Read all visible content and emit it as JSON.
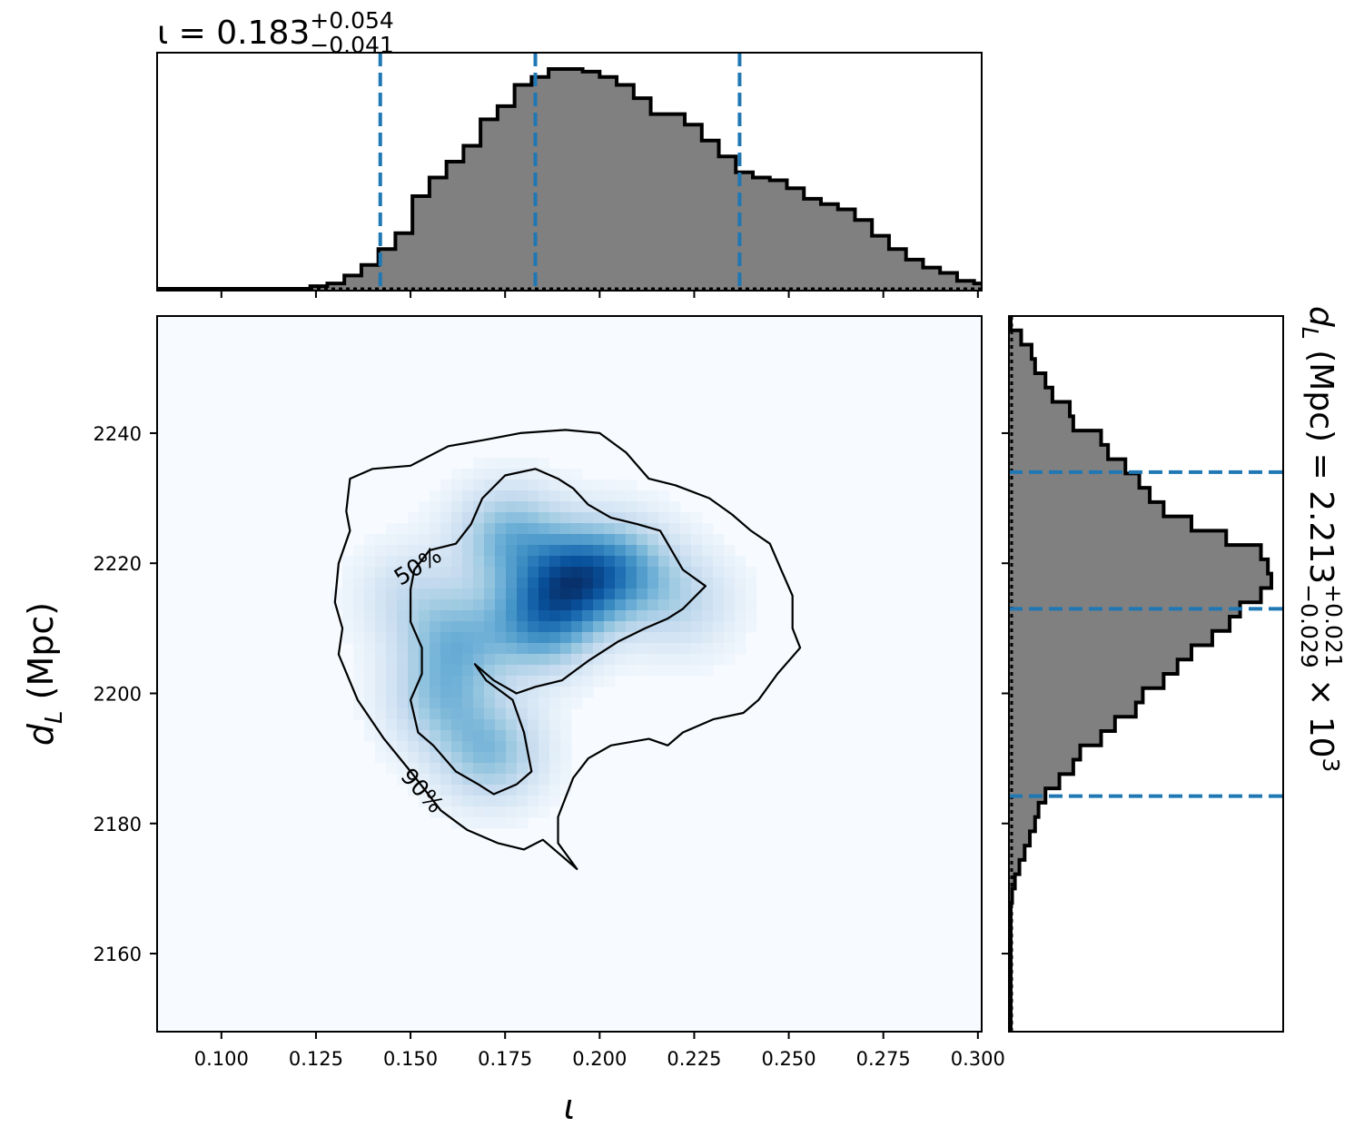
{
  "chart_data": [
    {
      "panel": "iota-marginal",
      "type": "histogram",
      "title_main": "ι = 0.183",
      "title_sup": "+0.054",
      "title_sub": "−0.041",
      "xlim": [
        0.083,
        0.301
      ],
      "bin_edges_start": 0.083,
      "bin_width": 0.0045,
      "counts": [
        0,
        0,
        0,
        0,
        0,
        0,
        0,
        0,
        0,
        0.5,
        1,
        2.5,
        4.5,
        7.5,
        10.5,
        17.5,
        21,
        24,
        27,
        32,
        34.5,
        38.5,
        40,
        41.5,
        41.5,
        41,
        40,
        38.5,
        36,
        33,
        33,
        31,
        28,
        25,
        22,
        21,
        20.5,
        19,
        17,
        16,
        15,
        13,
        10,
        7.5,
        5.5,
        4,
        3,
        1.5,
        1,
        0.5
      ],
      "quantile_lines": [
        0.142,
        0.183,
        0.237
      ],
      "fill_color": "#808080",
      "line_color": "#1f77b4"
    },
    {
      "panel": "joint-density",
      "type": "heatmap",
      "xlabel": "ι",
      "ylabel": "d_L (Mpc)",
      "xlim": [
        0.083,
        0.301
      ],
      "ylim": [
        2148,
        2258
      ],
      "xticks": [
        "0.100",
        "0.125",
        "0.150",
        "0.175",
        "0.200",
        "0.225",
        "0.250",
        "0.275",
        "0.300"
      ],
      "xtick_values": [
        0.1,
        0.125,
        0.15,
        0.175,
        0.2,
        0.225,
        0.25,
        0.275,
        0.3
      ],
      "yticks": [
        "2160",
        "2180",
        "2200",
        "2220",
        "2240"
      ],
      "ytick_values": [
        2160,
        2180,
        2200,
        2220,
        2240
      ],
      "colormap": "Blues",
      "density_peaks": [
        {
          "x": 0.193,
          "y": 2217.5,
          "amp": 1.0
        },
        {
          "x": 0.184,
          "y": 2211,
          "amp": 0.78
        },
        {
          "x": 0.176,
          "y": 2224,
          "amp": 0.6
        },
        {
          "x": 0.206,
          "y": 2219,
          "amp": 0.62
        },
        {
          "x": 0.162,
          "y": 2208,
          "amp": 0.5
        },
        {
          "x": 0.171,
          "y": 2191,
          "amp": 0.55
        },
        {
          "x": 0.158,
          "y": 2199,
          "amp": 0.45
        },
        {
          "x": 0.222,
          "y": 2214,
          "amp": 0.3
        },
        {
          "x": 0.15,
          "y": 2215,
          "amp": 0.25
        }
      ],
      "contours": [
        {
          "label": "50%",
          "label_at": [
            0.152,
            2219.5
          ],
          "label_angle": -32,
          "points": [
            [
              0.15,
              2216
            ],
            [
              0.151,
              2219
            ],
            [
              0.155,
              2222
            ],
            [
              0.162,
              2223
            ],
            [
              0.166,
              2226
            ],
            [
              0.169,
              2230
            ],
            [
              0.175,
              2233.5
            ],
            [
              0.183,
              2234.5
            ],
            [
              0.189,
              2233
            ],
            [
              0.193,
              2231.5
            ],
            [
              0.197,
              2229
            ],
            [
              0.203,
              2227
            ],
            [
              0.21,
              2226
            ],
            [
              0.216,
              2225
            ],
            [
              0.219,
              2222
            ],
            [
              0.222,
              2219
            ],
            [
              0.228,
              2216.5
            ],
            [
              0.222,
              2213
            ],
            [
              0.218,
              2211.5
            ],
            [
              0.212,
              2210
            ],
            [
              0.205,
              2208
            ],
            [
              0.197,
              2205
            ],
            [
              0.19,
              2202
            ],
            [
              0.183,
              2201
            ],
            [
              0.178,
              2200
            ],
            [
              0.172,
              2202
            ],
            [
              0.167,
              2204.5
            ],
            [
              0.17,
              2202
            ],
            [
              0.177,
              2199
            ],
            [
              0.18,
              2194
            ],
            [
              0.182,
              2188
            ],
            [
              0.178,
              2186
            ],
            [
              0.172,
              2184.5
            ],
            [
              0.168,
              2186
            ],
            [
              0.162,
              2188
            ],
            [
              0.156,
              2192
            ],
            [
              0.152,
              2194
            ],
            [
              0.15,
              2199
            ],
            [
              0.153,
              2203
            ],
            [
              0.153,
              2207
            ],
            [
              0.15,
              2211
            ],
            [
              0.15,
              2216
            ]
          ]
        },
        {
          "label": "90%",
          "label_at": [
            0.153,
            2185
          ],
          "label_angle": 48,
          "points": [
            [
              0.158,
              2182
            ],
            [
              0.165,
              2179
            ],
            [
              0.173,
              2177
            ],
            [
              0.18,
              2176
            ],
            [
              0.185,
              2177.5
            ],
            [
              0.19,
              2175
            ],
            [
              0.194,
              2173
            ],
            [
              0.189,
              2177
            ],
            [
              0.189,
              2181
            ],
            [
              0.193,
              2187
            ],
            [
              0.197,
              2190
            ],
            [
              0.203,
              2192
            ],
            [
              0.213,
              2193
            ],
            [
              0.218,
              2192
            ],
            [
              0.222,
              2194
            ],
            [
              0.23,
              2196
            ],
            [
              0.238,
              2197
            ],
            [
              0.242,
              2199
            ],
            [
              0.247,
              2203
            ],
            [
              0.25,
              2205
            ],
            [
              0.253,
              2207
            ],
            [
              0.251,
              2210
            ],
            [
              0.251,
              2215
            ],
            [
              0.248,
              2219
            ],
            [
              0.245,
              2223
            ],
            [
              0.24,
              2225
            ],
            [
              0.235,
              2227.5
            ],
            [
              0.229,
              2230
            ],
            [
              0.22,
              2232
            ],
            [
              0.213,
              2233
            ],
            [
              0.207,
              2237
            ],
            [
              0.2,
              2240
            ],
            [
              0.191,
              2240.5
            ],
            [
              0.179,
              2240
            ],
            [
              0.17,
              2239
            ],
            [
              0.16,
              2238
            ],
            [
              0.15,
              2235
            ],
            [
              0.14,
              2234.5
            ],
            [
              0.134,
              2233
            ],
            [
              0.133,
              2228
            ],
            [
              0.134,
              2225
            ],
            [
              0.131,
              2220
            ],
            [
              0.13,
              2214
            ],
            [
              0.132,
              2210
            ],
            [
              0.131,
              2206
            ],
            [
              0.136,
              2199
            ],
            [
              0.143,
              2193
            ],
            [
              0.15,
              2188
            ],
            [
              0.158,
              2182
            ]
          ]
        }
      ]
    },
    {
      "panel": "dL-marginal",
      "type": "histogram",
      "orientation": "horizontal",
      "title_main": "d",
      "title_sub_L": "L",
      "title_rest": " (Mpc) = 2.213",
      "title_sup": "+0.021",
      "title_sub": "−0.029",
      "title_suffix": " × 10",
      "title_exp": "3",
      "ylim": [
        2148,
        2258
      ],
      "bin_edges_start": 2148,
      "bin_width": 2.2,
      "counts": [
        0,
        0,
        0,
        0,
        0,
        0,
        0,
        0,
        0,
        0.4,
        1.2,
        2.5,
        4,
        5.5,
        7,
        8,
        10,
        14,
        18,
        20,
        26,
        30,
        36,
        38,
        44,
        48,
        52,
        58,
        63,
        66,
        72,
        75,
        74,
        72,
        62,
        52,
        44,
        40,
        37,
        33,
        28,
        26,
        18,
        17,
        12,
        10,
        7,
        6,
        3,
        0,
        0
      ],
      "quantile_lines": [
        2184.2,
        2213,
        2234
      ],
      "fill_color": "#808080",
      "line_color": "#1f77b4"
    }
  ]
}
